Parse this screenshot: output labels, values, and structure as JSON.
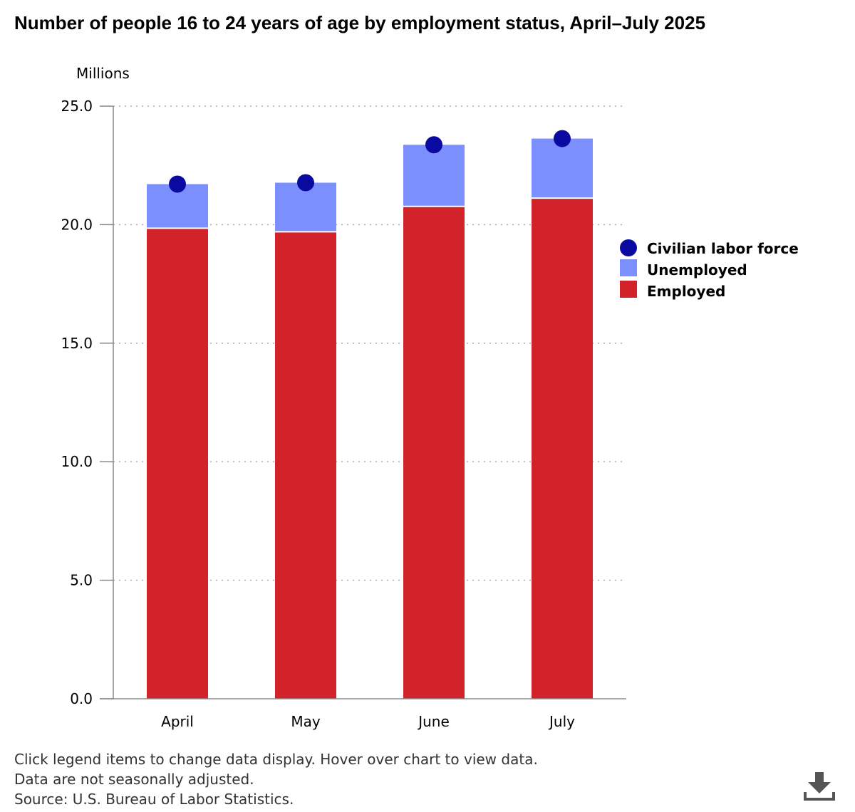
{
  "chart_data": {
    "type": "bar",
    "title": "Number of people 16 to 24 years of age by employment status, April–July 2025",
    "ylabel": "Millions",
    "xlabel": "",
    "ylim": [
      0,
      25
    ],
    "yticks": [
      "0.0",
      "5.0",
      "10.0",
      "15.0",
      "20.0",
      "25.0"
    ],
    "ytick_values": [
      0,
      5,
      10,
      15,
      20,
      25
    ],
    "grid": true,
    "stacked": true,
    "legend_position": "right",
    "categories": [
      "April",
      "May",
      "June",
      "July"
    ],
    "series": [
      {
        "name": "Employed",
        "kind": "bar",
        "color": "#d2232a",
        "values": [
          19.85,
          19.7,
          20.77,
          21.12
        ]
      },
      {
        "name": "Unemployed",
        "kind": "bar",
        "color": "#7b8fff",
        "values": [
          1.86,
          2.07,
          2.6,
          2.51
        ]
      },
      {
        "name": "Civilian labor force",
        "kind": "point",
        "color": "#0a0aa0",
        "values": [
          21.71,
          21.77,
          23.37,
          23.63
        ]
      }
    ],
    "legend": [
      "Civilian labor force",
      "Unemployed",
      "Employed"
    ]
  },
  "notes": {
    "line1": "Click legend items to change data display. Hover over chart to view data.",
    "line2": "Data are not seasonally adjusted.",
    "line3": "Source: U.S. Bureau of Labor Statistics."
  },
  "icons": {
    "download": "download-icon"
  },
  "colors": {
    "axis": "#888888",
    "grid": "#aaaaaa"
  }
}
